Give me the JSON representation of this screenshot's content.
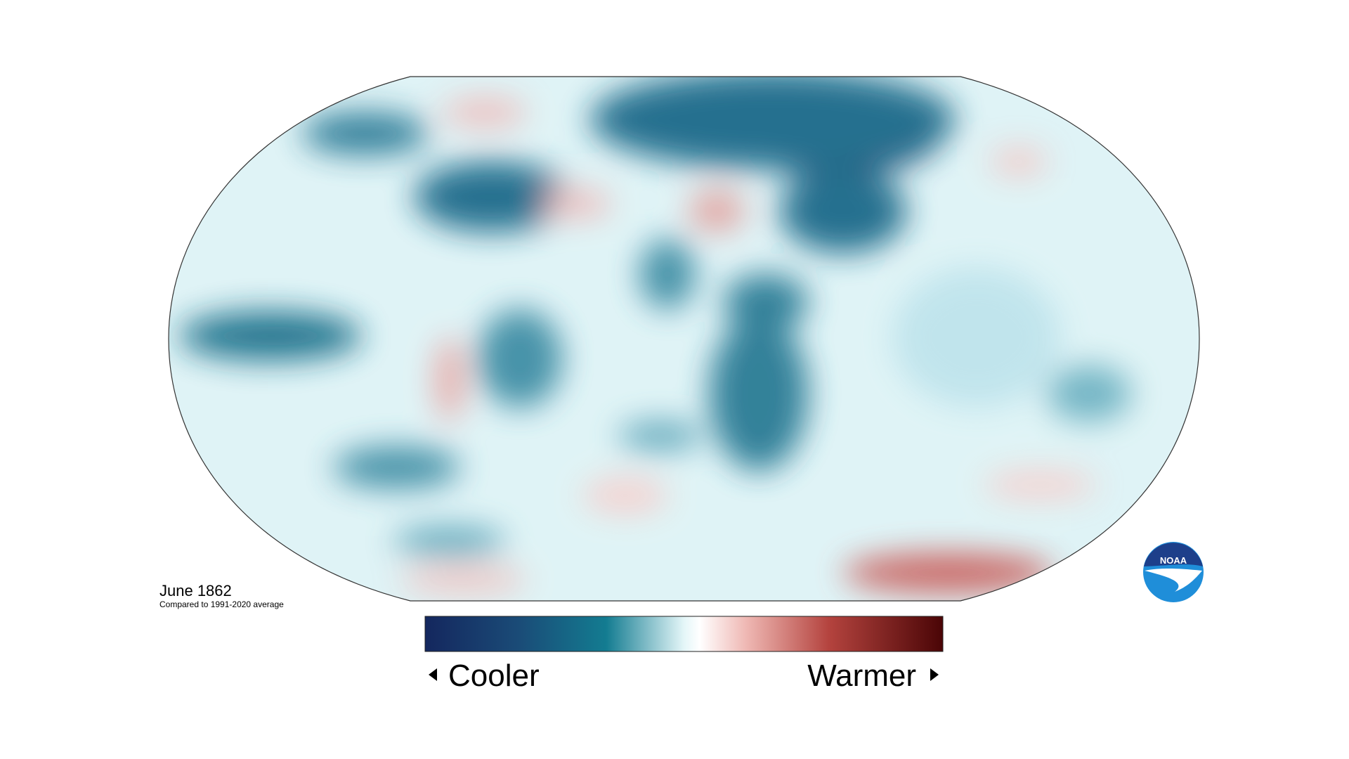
{
  "map": {
    "date": "June 1862",
    "baseline": "Compared to 1991-2020 average"
  },
  "legend": {
    "low": "Cooler",
    "high": "Warmer"
  },
  "logo": "NOAA"
}
